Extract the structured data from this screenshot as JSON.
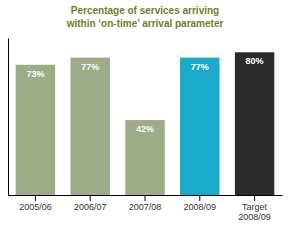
{
  "chart_data": {
    "type": "bar",
    "title": "Percentage of services arriving\nwithin ‘on-time’ arrival parameter",
    "categories": [
      "2005/06",
      "2006/07",
      "2007/08",
      "2008/09",
      "Target\n2008/09"
    ],
    "values": [
      73,
      77,
      42,
      77,
      80
    ],
    "value_labels": [
      "73%",
      "77%",
      "42%",
      "77%",
      "80%"
    ],
    "colors": [
      "#9dab86",
      "#9dab86",
      "#9dab86",
      "#1aabcc",
      "#2b2b2b"
    ],
    "ylim": [
      0,
      88
    ],
    "yticks": [],
    "grid": false,
    "data_labels": true,
    "tick_labels": "x"
  }
}
